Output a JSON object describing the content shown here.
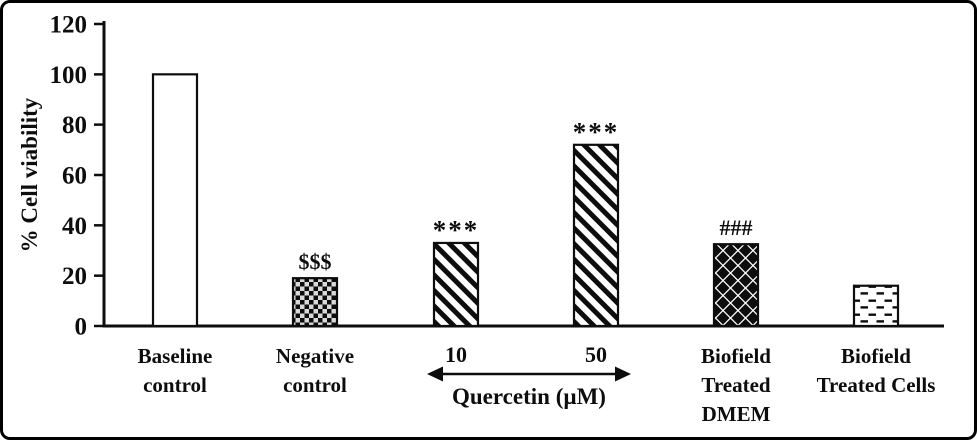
{
  "figure": {
    "background": "#ffffff",
    "border_color": "#000000",
    "ink_color": "#0d0d0d"
  },
  "chart_data": {
    "type": "bar",
    "title": "",
    "xlabel": "",
    "ylabel": "% Cell viability",
    "ylim": [
      0,
      120
    ],
    "yticks": [
      0,
      20,
      40,
      60,
      80,
      100,
      120
    ],
    "grid": "off",
    "legend": "none",
    "bars": [
      {
        "label_lines": [
          "Baseline",
          "control"
        ],
        "value": 100,
        "pattern": "plain-white",
        "annotation": ""
      },
      {
        "label_lines": [
          "Negative",
          "control"
        ],
        "value": 19,
        "pattern": "checker-dark",
        "annotation": "$$$"
      },
      {
        "label_lines": [
          "10"
        ],
        "value": 33,
        "pattern": "diagonal-stripes",
        "annotation": "***"
      },
      {
        "label_lines": [
          "50"
        ],
        "value": 72,
        "pattern": "diagonal-stripes",
        "annotation": "***"
      },
      {
        "label_lines": [
          "Biofield",
          "Treated",
          "DMEM"
        ],
        "value": 32.5,
        "pattern": "black-diamonds",
        "annotation": "###"
      },
      {
        "label_lines": [
          "Biofield",
          "Treated Cells"
        ],
        "value": 16,
        "pattern": "horizontal-dashes",
        "annotation": ""
      }
    ],
    "group_label": {
      "text": "Quercetin (µM)",
      "bar_indexes": [
        2,
        3
      ],
      "arrow": "double-headed"
    }
  }
}
